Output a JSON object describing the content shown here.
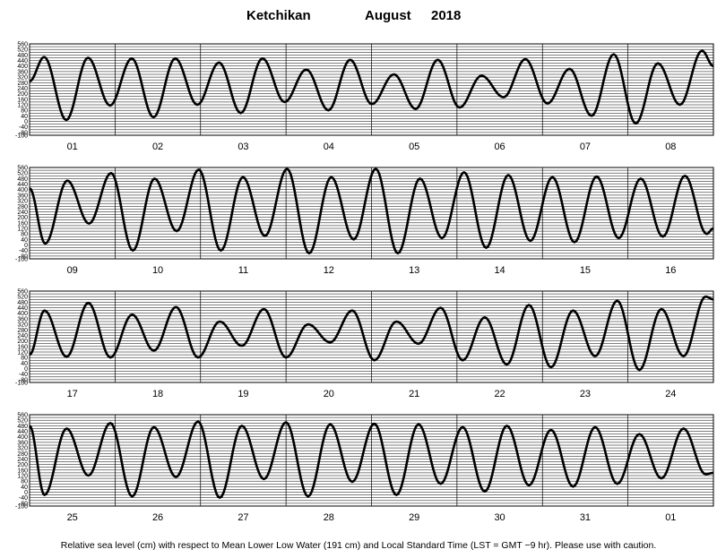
{
  "chart_data": {
    "type": "line",
    "title": {
      "station": "Ketchikan",
      "month": "August",
      "year": "2018"
    },
    "ylabel": "",
    "xlabel": "",
    "ylim": [
      -100,
      560
    ],
    "yticks": [
      560,
      520,
      480,
      440,
      400,
      360,
      320,
      280,
      240,
      200,
      160,
      120,
      80,
      40,
      0,
      -40,
      -80,
      -100
    ],
    "ytick_labels": [
      "560",
      "520",
      "480",
      "440",
      "400",
      "360",
      "320",
      "280",
      "240",
      "200",
      "160",
      "120",
      "80",
      "40",
      "0",
      "-40",
      "-80",
      "-100"
    ],
    "grid": true,
    "footnote": "Relative sea level (cm) with respect to Mean Lower Low Water (191 cm) and Local Standard Time (LST = GMT −9 hr). Please use with caution.",
    "panels": [
      {
        "days": [
          "01",
          "02",
          "03",
          "04",
          "05",
          "06",
          "07",
          "08"
        ],
        "series": [
          {
            "x_hours": [
              0,
              4.1,
              10.3,
              16.4,
              22.6,
              28.7,
              34.8,
              40.9,
              47.1,
              53.2,
              59.3,
              65.4,
              71.6,
              77.7,
              83.9,
              90,
              96.1,
              102.3,
              108.4,
              114.6,
              120.7,
              126.9,
              133.1,
              139.2,
              145.4,
              151.6,
              157.8,
              164,
              170.2,
              176.4,
              182.6,
              188.8,
              192
            ],
            "values": [
              290,
              465,
              10,
              460,
              115,
              455,
              30,
              455,
              120,
              425,
              60,
              455,
              140,
              375,
              80,
              445,
              125,
              340,
              90,
              445,
              100,
              330,
              175,
              450,
              130,
              380,
              40,
              485,
              -15,
              420,
              120,
              510,
              400
            ]
          }
        ]
      },
      {
        "days": [
          "09",
          "10",
          "11",
          "12",
          "13",
          "14",
          "15",
          "16"
        ],
        "series": [
          {
            "x_hours": [
              0,
              4.4,
              10.6,
              16.7,
              22.9,
              29,
              35.1,
              41.3,
              47.5,
              53.7,
              59.9,
              66.1,
              72.3,
              78.5,
              84.7,
              91,
              97.2,
              103.4,
              109.6,
              115.8,
              122,
              128.2,
              134.4,
              140.6,
              146.8,
              153,
              159.2,
              165.4,
              171.6,
              177.8,
              184,
              190.1,
              192
            ],
            "values": [
              410,
              10,
              465,
              155,
              520,
              -40,
              480,
              100,
              545,
              -40,
              490,
              65,
              550,
              -60,
              490,
              40,
              550,
              -60,
              480,
              50,
              525,
              -20,
              505,
              30,
              490,
              20,
              495,
              50,
              480,
              60,
              500,
              80,
              120
            ]
          }
        ]
      },
      {
        "days": [
          "17",
          "18",
          "19",
          "20",
          "21",
          "22",
          "23",
          "24"
        ],
        "series": [
          {
            "x_hours": [
              0,
              4.2,
              10.4,
              16.5,
              22.7,
              28.8,
              34.9,
              41.1,
              47.3,
              53.4,
              59.6,
              65.8,
              72,
              78.2,
              84.4,
              90.6,
              96.8,
              103,
              109.2,
              115.4,
              121.6,
              127.8,
              134,
              140.2,
              146.4,
              152.6,
              158.8,
              165,
              171.2,
              177.4,
              183.6,
              189.8,
              192
            ],
            "values": [
              100,
              420,
              85,
              475,
              80,
              390,
              130,
              445,
              80,
              340,
              165,
              430,
              80,
              320,
              190,
              420,
              60,
              340,
              180,
              440,
              60,
              370,
              30,
              460,
              10,
              420,
              90,
              490,
              -10,
              430,
              90,
              520,
              500
            ]
          }
        ]
      },
      {
        "days": [
          "25",
          "26",
          "27",
          "28",
          "29",
          "30",
          "31",
          "01"
        ],
        "series": [
          {
            "x_hours": [
              0,
              4.2,
              10.4,
              16.5,
              22.7,
              28.8,
              34.9,
              41.1,
              47.3,
              53.4,
              59.6,
              65.8,
              72,
              78.2,
              84.4,
              90.6,
              96.8,
              103,
              109.2,
              115.4,
              121.6,
              127.8,
              134,
              140.2,
              146.4,
              152.6,
              158.8,
              165,
              171.2,
              177.4,
              183.6,
              189.8,
              192
            ],
            "values": [
              480,
              -20,
              460,
              120,
              500,
              -30,
              470,
              110,
              510,
              -40,
              480,
              95,
              505,
              -30,
              490,
              75,
              495,
              -20,
              490,
              60,
              470,
              5,
              480,
              50,
              450,
              40,
              470,
              60,
              420,
              100,
              460,
              130,
              140
            ]
          }
        ]
      }
    ]
  }
}
